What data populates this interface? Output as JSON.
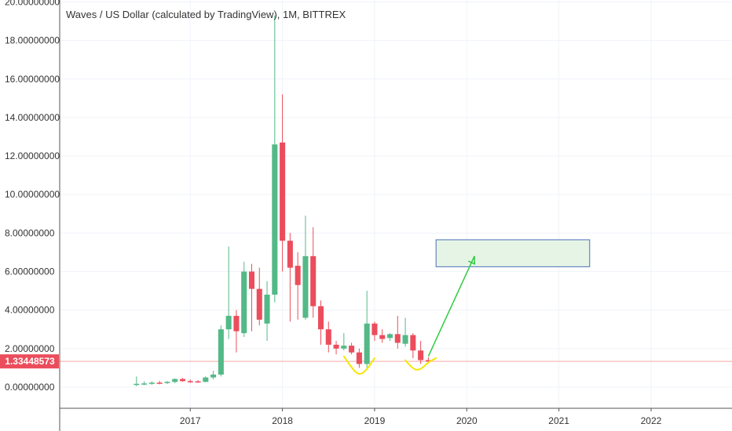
{
  "chart_data": {
    "type": "candlestick",
    "title": "Waves / US Dollar (calculated by TradingView), 1M, BITTREX",
    "ylim": [
      -1.1,
      20.1
    ],
    "y_ticks": [
      0,
      2,
      4,
      6,
      8,
      10,
      12,
      14,
      16,
      18,
      20
    ],
    "y_tick_labels": [
      "0.00000000",
      "2.00000000",
      "4.00000000",
      "6.00000000",
      "8.00000000",
      "10.00000000",
      "12.00000000",
      "14.00000000",
      "16.00000000",
      "18.00000000",
      "20.00000000"
    ],
    "x_ticks": [
      {
        "date": "2017-01",
        "label": "2017"
      },
      {
        "date": "2018-01",
        "label": "2018"
      },
      {
        "date": "2019-01",
        "label": "2019"
      },
      {
        "date": "2020-01",
        "label": "2020"
      },
      {
        "date": "2021-01",
        "label": "2021"
      },
      {
        "date": "2022-01",
        "label": "2022"
      }
    ],
    "xlim": [
      "2015-08",
      "2022-10"
    ],
    "grid": true,
    "colors": {
      "up": "#53b987",
      "down": "#eb4d5c",
      "price_line": "#f7a9a7",
      "price_label_bg": "#eb4d5c",
      "annotation_green": "#2ecc40",
      "annotation_yellow": "#f5e600",
      "box_fill": "#e6f4e6",
      "box_stroke": "#4a6fb5"
    },
    "current_price": {
      "value": 1.33448573,
      "label": "1.33448573"
    },
    "candles": [
      {
        "date": "2016-06",
        "o": 0.15,
        "h": 0.55,
        "l": 0.05,
        "c": 0.17
      },
      {
        "date": "2016-07",
        "o": 0.17,
        "h": 0.3,
        "l": 0.1,
        "c": 0.19
      },
      {
        "date": "2016-08",
        "o": 0.19,
        "h": 0.3,
        "l": 0.12,
        "c": 0.23
      },
      {
        "date": "2016-09",
        "o": 0.23,
        "h": 0.32,
        "l": 0.15,
        "c": 0.22
      },
      {
        "date": "2016-10",
        "o": 0.22,
        "h": 0.32,
        "l": 0.16,
        "c": 0.27
      },
      {
        "date": "2016-11",
        "o": 0.27,
        "h": 0.45,
        "l": 0.2,
        "c": 0.42
      },
      {
        "date": "2016-12",
        "o": 0.42,
        "h": 0.48,
        "l": 0.28,
        "c": 0.31
      },
      {
        "date": "2017-01",
        "o": 0.31,
        "h": 0.4,
        "l": 0.22,
        "c": 0.3
      },
      {
        "date": "2017-02",
        "o": 0.3,
        "h": 0.36,
        "l": 0.22,
        "c": 0.27
      },
      {
        "date": "2017-03",
        "o": 0.27,
        "h": 0.56,
        "l": 0.25,
        "c": 0.5
      },
      {
        "date": "2017-04",
        "o": 0.5,
        "h": 0.85,
        "l": 0.4,
        "c": 0.65
      },
      {
        "date": "2017-05",
        "o": 0.65,
        "h": 3.2,
        "l": 0.55,
        "c": 3.0
      },
      {
        "date": "2017-06",
        "o": 3.0,
        "h": 7.3,
        "l": 2.5,
        "c": 3.7
      },
      {
        "date": "2017-07",
        "o": 3.7,
        "h": 4.0,
        "l": 1.8,
        "c": 2.9
      },
      {
        "date": "2017-08",
        "o": 2.8,
        "h": 6.5,
        "l": 2.6,
        "c": 6.0
      },
      {
        "date": "2017-09",
        "o": 6.0,
        "h": 6.4,
        "l": 2.9,
        "c": 5.1
      },
      {
        "date": "2017-10",
        "o": 5.1,
        "h": 6.2,
        "l": 3.2,
        "c": 3.5
      },
      {
        "date": "2017-11",
        "o": 3.3,
        "h": 5.5,
        "l": 2.4,
        "c": 4.8
      },
      {
        "date": "2017-12",
        "o": 4.8,
        "h": 19.3,
        "l": 4.4,
        "c": 12.6
      },
      {
        "date": "2018-01",
        "o": 12.7,
        "h": 15.2,
        "l": 6.0,
        "c": 7.6
      },
      {
        "date": "2018-02",
        "o": 7.6,
        "h": 8.0,
        "l": 3.4,
        "c": 6.2
      },
      {
        "date": "2018-03",
        "o": 6.3,
        "h": 7.0,
        "l": 3.5,
        "c": 5.3
      },
      {
        "date": "2018-04",
        "o": 3.6,
        "h": 8.9,
        "l": 3.5,
        "c": 6.8
      },
      {
        "date": "2018-05",
        "o": 6.8,
        "h": 8.3,
        "l": 3.6,
        "c": 4.2
      },
      {
        "date": "2018-06",
        "o": 4.2,
        "h": 4.5,
        "l": 2.2,
        "c": 3.0
      },
      {
        "date": "2018-07",
        "o": 3.0,
        "h": 3.4,
        "l": 1.8,
        "c": 2.2
      },
      {
        "date": "2018-08",
        "o": 2.2,
        "h": 2.4,
        "l": 1.7,
        "c": 2.0
      },
      {
        "date": "2018-09",
        "o": 2.0,
        "h": 2.8,
        "l": 1.9,
        "c": 2.15
      },
      {
        "date": "2018-10",
        "o": 2.15,
        "h": 2.3,
        "l": 1.7,
        "c": 1.8
      },
      {
        "date": "2018-11",
        "o": 1.8,
        "h": 2.0,
        "l": 1.0,
        "c": 1.2
      },
      {
        "date": "2018-12",
        "o": 1.2,
        "h": 5.0,
        "l": 1.0,
        "c": 3.3
      },
      {
        "date": "2019-01",
        "o": 3.3,
        "h": 3.4,
        "l": 2.4,
        "c": 2.7
      },
      {
        "date": "2019-02",
        "o": 2.7,
        "h": 3.0,
        "l": 2.3,
        "c": 2.5
      },
      {
        "date": "2019-03",
        "o": 2.55,
        "h": 2.8,
        "l": 2.4,
        "c": 2.75
      },
      {
        "date": "2019-04",
        "o": 2.75,
        "h": 3.7,
        "l": 2.0,
        "c": 2.3
      },
      {
        "date": "2019-05",
        "o": 2.25,
        "h": 3.6,
        "l": 2.1,
        "c": 2.7
      },
      {
        "date": "2019-06",
        "o": 2.7,
        "h": 2.8,
        "l": 1.5,
        "c": 1.9
      },
      {
        "date": "2019-07",
        "o": 1.9,
        "h": 2.4,
        "l": 1.2,
        "c": 1.4
      },
      {
        "date": "2019-08",
        "o": 1.4,
        "h": 1.55,
        "l": 1.25,
        "c": 1.33
      }
    ],
    "annotations": {
      "target_box": {
        "x_start": "2019-09",
        "x_end": "2021-05",
        "y_low": 6.25,
        "y_high": 7.65
      },
      "arrow": {
        "from": {
          "date": "2019-08",
          "y": 1.6
        },
        "to": {
          "date": "2020-02",
          "y": 6.8
        }
      },
      "curve_1": [
        [
          "2018-09",
          1.6
        ],
        [
          "2018-10",
          1.0
        ],
        [
          "2018-11",
          0.6
        ],
        [
          "2018-12",
          0.9
        ],
        [
          "2019-01",
          1.5
        ]
      ],
      "curve_2": [
        [
          "2019-05",
          1.4
        ],
        [
          "2019-06",
          0.9
        ],
        [
          "2019-07",
          0.9
        ],
        [
          "2019-08",
          1.3
        ],
        [
          "2019-09",
          1.5
        ]
      ]
    }
  }
}
